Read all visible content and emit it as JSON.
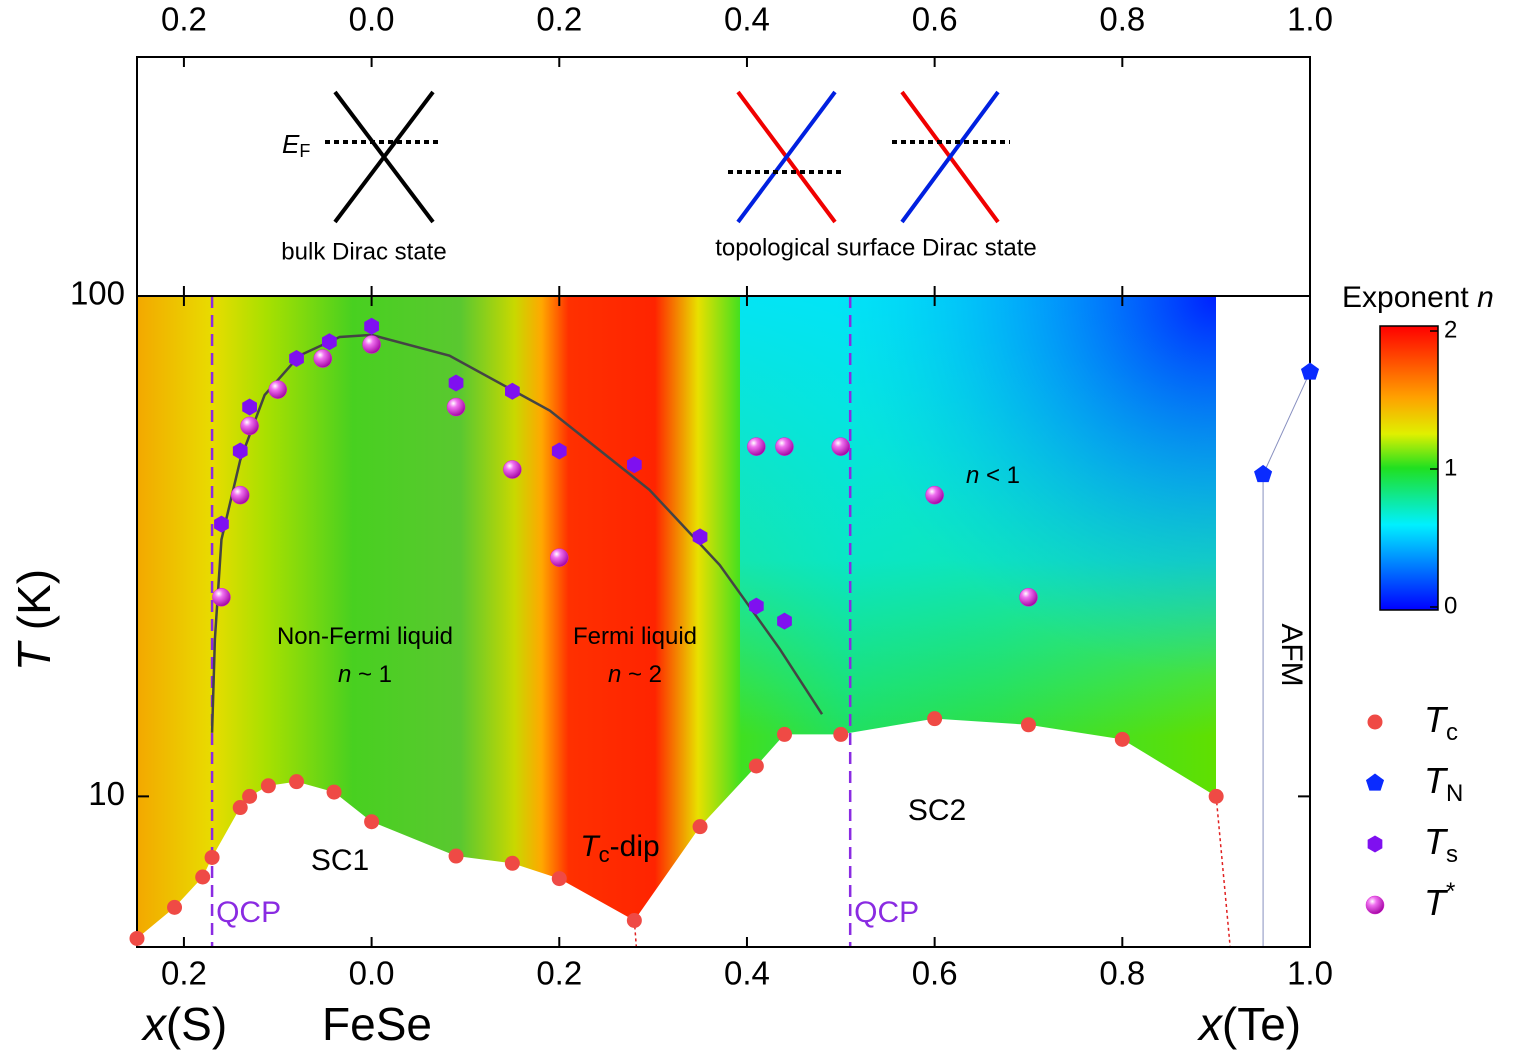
{
  "chart_data": {
    "type": "phase_diagram",
    "xlim": [
      -0.25,
      1.0
    ],
    "xticks": [
      {
        "value": -0.2,
        "label": "0.2"
      },
      {
        "value": 0,
        "label": "0.0"
      },
      0.2,
      0.4,
      0.6,
      0.8,
      {
        "value": 1.0,
        "label": "1.0"
      }
    ],
    "ylim": [
      5,
      100
    ],
    "yscale": "log",
    "yticks": [
      10,
      100
    ],
    "ylabel_symbol": "T",
    "ylabel_unit": " (K)",
    "xlabel_left_symbol": "x",
    "xlabel_left_unit": "(S)",
    "xlabel_center": "FeSe",
    "xlabel_right_symbol": "x",
    "xlabel_right_unit": "(Te)",
    "colorbar": {
      "label": "Exponent ",
      "symbol": "n",
      "lim": [
        0,
        2
      ],
      "ticks": [
        0,
        1,
        2
      ]
    },
    "qcp": [
      {
        "x": -0.17,
        "label": "QCP"
      },
      {
        "x": 0.51,
        "label": "QCP"
      }
    ],
    "top_panel": {
      "bulk_label": "bulk Dirac state",
      "surface_label": "topological surface Dirac state",
      "ef_symbol": "E",
      "ef_sub": "F"
    },
    "annotations": [
      {
        "text": "Non-Fermi liquid"
      },
      {
        "symbol": "n",
        "text": " ~ 1"
      },
      {
        "text": "Fermi liquid"
      },
      {
        "symbol": "n",
        "text": " ~ 2"
      },
      {
        "symbol": "n",
        "text": " < 1"
      },
      {
        "text": "SC1"
      },
      {
        "symbol": "T",
        "sub": "c",
        "text": "-dip"
      },
      {
        "text": "SC2"
      },
      {
        "text": "AFM"
      }
    ],
    "series": [
      {
        "name": "T",
        "name_sub": "c",
        "marker": "circle",
        "color": "#ef4a45",
        "x": [
          -0.25,
          -0.21,
          -0.18,
          -0.17,
          -0.14,
          -0.13,
          -0.11,
          -0.08,
          -0.04,
          0,
          0.09,
          0.15,
          0.2,
          0.28,
          0.35,
          0.41,
          0.44,
          0.5,
          0.6,
          0.7,
          0.8,
          0.9
        ],
        "values": [
          5.2,
          6.0,
          6.9,
          7.55,
          9.5,
          10.0,
          10.5,
          10.7,
          10.2,
          8.9,
          7.6,
          7.35,
          6.85,
          5.65,
          8.7,
          11.5,
          13.3,
          13.3,
          14.3,
          13.9,
          13.0,
          10.0
        ]
      },
      {
        "name": "T",
        "name_sub": "N",
        "marker": "pentagon",
        "color": "#0a2bff",
        "x": [
          0.95,
          1.0
        ],
        "values": [
          44,
          70.5
        ]
      },
      {
        "name": "T",
        "name_sub": "s",
        "marker": "hexagon",
        "color": "#7f10f0",
        "x": [
          -0.16,
          -0.14,
          -0.13,
          -0.08,
          -0.045,
          0,
          0.09,
          0.15,
          0.2,
          0.28,
          0.35,
          0.41,
          0.44
        ],
        "values": [
          35,
          49,
          60,
          75,
          81,
          87,
          67,
          64.5,
          49,
          46,
          33,
          24,
          22.4
        ]
      },
      {
        "name": "T",
        "name_sup": "*",
        "marker": "sphere",
        "color": "#d61fd0",
        "x": [
          -0.16,
          -0.14,
          -0.13,
          -0.1,
          -0.052,
          0,
          0.09,
          0.15,
          0.2,
          0.41,
          0.44,
          0.5,
          0.6,
          0.7
        ],
        "values": [
          25,
          40,
          55,
          65,
          75,
          80,
          60,
          45,
          30,
          50,
          50,
          50,
          40,
          25
        ]
      }
    ],
    "guide_curve": {
      "color": "#444444",
      "x": [
        -0.17,
        -0.167,
        -0.16,
        -0.14,
        -0.114,
        -0.077,
        -0.034,
        0,
        0.083,
        0.19,
        0.296,
        0.371,
        0.435,
        0.48
      ],
      "values": [
        13.4,
        20.6,
        32.6,
        47,
        63.4,
        76,
        82.8,
        83.6,
        76,
        59,
        41,
        29,
        19.7,
        14.6
      ]
    }
  }
}
